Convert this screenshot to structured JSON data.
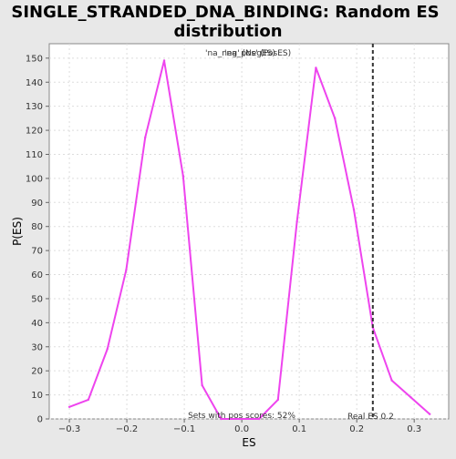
{
  "chart_data": {
    "type": "line",
    "title_lines": [
      "SINGLE_STRANDED_DNA_BINDING: Random ES",
      "distribution"
    ],
    "xlabel": "ES",
    "ylabel": "P(ES)",
    "xlim": [
      -0.335,
      0.36
    ],
    "ylim": [
      0,
      156
    ],
    "xticks": [
      -0.3,
      -0.2,
      -0.1,
      0.0,
      0.1,
      0.2,
      0.3
    ],
    "xtick_labels": [
      "−0.3",
      "−0.2",
      "−0.1",
      "0.0",
      "0.1",
      "0.2",
      "0.3"
    ],
    "yticks": [
      0,
      10,
      20,
      30,
      40,
      50,
      60,
      70,
      80,
      90,
      100,
      110,
      120,
      130,
      140,
      150
    ],
    "ytick_labels": [
      "0",
      "10",
      "20",
      "30",
      "40",
      "50",
      "60",
      "70",
      "80",
      "90",
      "100",
      "110",
      "120",
      "130",
      "140",
      "150"
    ],
    "grid": true,
    "legend": {
      "placement": "top-center",
      "neg_label": "'na_neg' (NegES)",
      "pos_label": "'na_pos' (PosES)",
      "neg_color": "#5533cc",
      "pos_color": "#ee3344"
    },
    "series": [
      {
        "color": "#ee44ee",
        "x": [
          -0.3,
          -0.267,
          -0.234,
          -0.201,
          -0.168,
          -0.135,
          -0.102,
          -0.069,
          -0.036,
          -0.003,
          0.03,
          0.063,
          0.096,
          0.129,
          0.162,
          0.195,
          0.228,
          0.261,
          0.294,
          0.327
        ],
        "y": [
          5,
          8,
          29,
          62,
          117,
          149,
          101,
          14,
          0,
          0,
          0,
          8,
          82,
          146,
          125,
          87,
          38,
          16,
          9,
          2
        ]
      }
    ],
    "real_es": {
      "value": 0.228,
      "label": "Real ES 0.2",
      "style": "dashed",
      "color": "#333333"
    },
    "bottom_annotation": "Sets with pos scores: 52%"
  }
}
